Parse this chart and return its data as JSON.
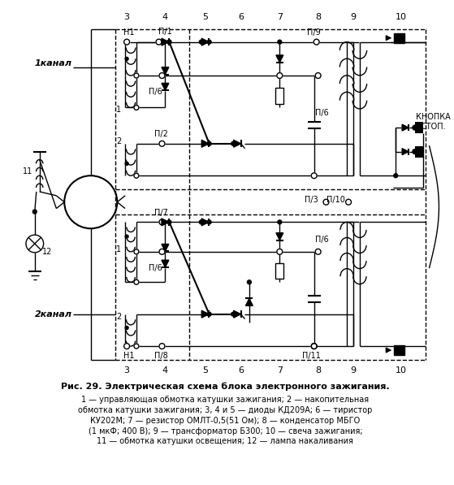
{
  "title": "Рис. 29. Электрическая схема блока электронного зажигания.",
  "caption_lines": [
    "1 — управляющая обмотка катушки зажигания; 2 — накопительная",
    "обмотка катушки зажигания; 3, 4 и 5 — диоды КД209А; 6 — тиристор",
    "КУ202М; 7 — резистор ОМЛТ-0,5(51 Ом); 8 — конденсатор МБГО",
    "(1 мкФ; 400 В); 9 — трансформатор Б300; 10 — свеча зажигания;",
    "11 — обмотка катушки освещения; 12 — лампа накаливания"
  ],
  "bg_color": "#ffffff",
  "line_color": "#000000",
  "channel1_label": "1канал",
  "channel2_label": "2канал",
  "knopka_label": "КНОПКА\nСТОП.",
  "col_nums_top": [
    "3",
    "4",
    "5",
    "6",
    "7",
    "8",
    "9",
    "10"
  ],
  "col_nums_bot": [
    "3",
    "4",
    "5",
    "6",
    "7",
    "8",
    "9",
    "10"
  ]
}
